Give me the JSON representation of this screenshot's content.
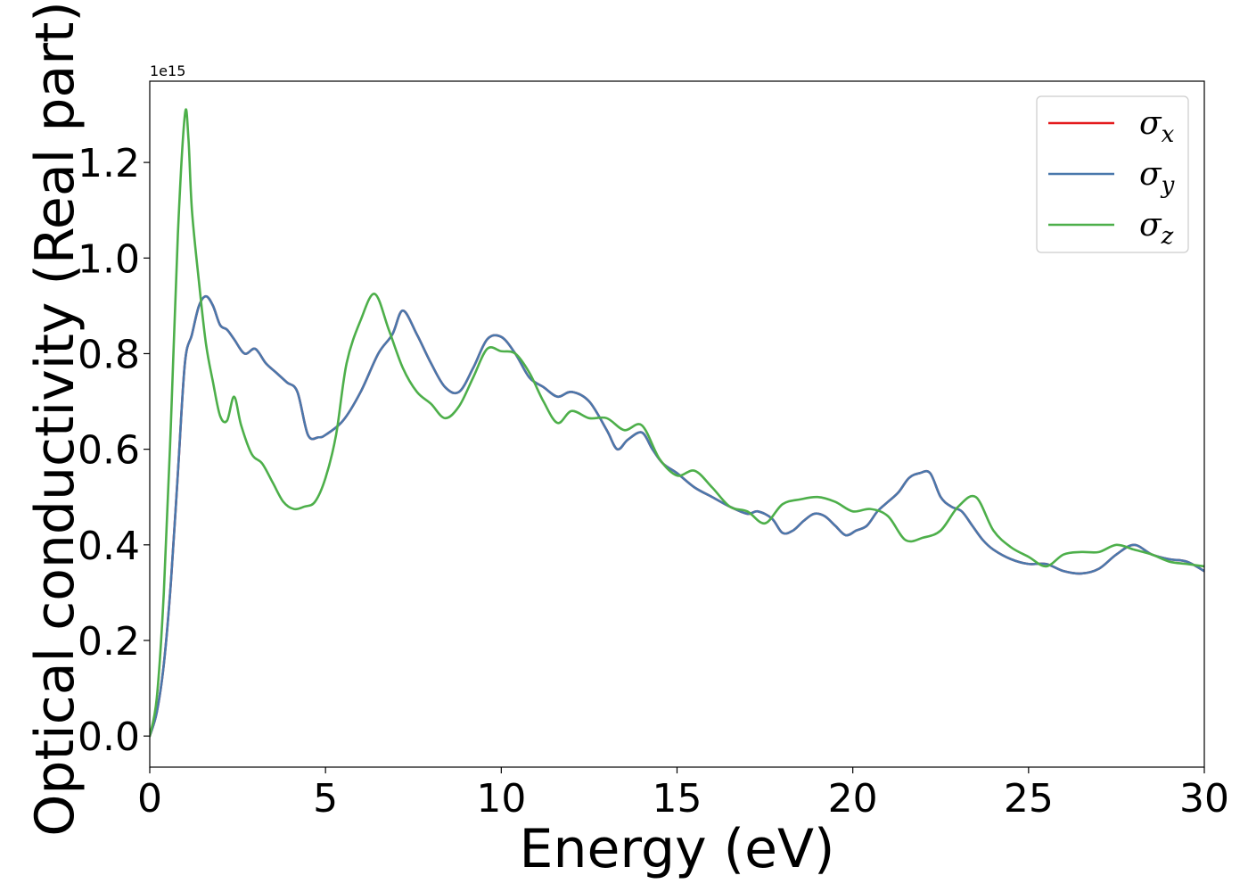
{
  "chart_data": {
    "type": "line",
    "title": "",
    "xlabel": "Energy (eV)",
    "ylabel": "Optical conductivity (Real part)",
    "y_offset_label": "1e15",
    "xlim": [
      0,
      30
    ],
    "ylim": [
      -0.065,
      1.37
    ],
    "xticks": [
      0,
      5,
      10,
      15,
      20,
      25,
      30
    ],
    "xtick_labels": [
      "0",
      "5",
      "10",
      "15",
      "20",
      "25",
      "30"
    ],
    "yticks": [
      0.0,
      0.2,
      0.4,
      0.6,
      0.8,
      1.0,
      1.2
    ],
    "ytick_labels": [
      "0.0",
      "0.2",
      "0.4",
      "0.6",
      "0.8",
      "1.0",
      "1.2"
    ],
    "grid": false,
    "legend_position": "top-right",
    "series": [
      {
        "name": "σx",
        "legend_base": "σ",
        "legend_sub": "x",
        "color": "#e41a1c",
        "x": [
          0,
          0.2,
          0.4,
          0.6,
          0.8,
          1.0,
          1.2,
          1.4,
          1.6,
          1.8,
          2.0,
          2.2,
          2.4,
          2.7,
          3.0,
          3.3,
          3.6,
          3.9,
          4.2,
          4.5,
          4.8,
          5.0,
          5.5,
          6.0,
          6.5,
          6.9,
          7.2,
          7.6,
          8.0,
          8.4,
          8.8,
          9.2,
          9.6,
          10.0,
          10.4,
          10.8,
          11.2,
          11.6,
          12.0,
          12.5,
          13.0,
          13.3,
          13.6,
          14.0,
          14.3,
          14.6,
          15.0,
          15.5,
          16.0,
          16.5,
          17.0,
          17.3,
          17.7,
          18.0,
          18.3,
          18.6,
          18.9,
          19.2,
          19.5,
          19.8,
          20.1,
          20.4,
          20.7,
          21.0,
          21.3,
          21.6,
          21.9,
          22.2,
          22.5,
          22.8,
          23.1,
          23.4,
          23.7,
          24.0,
          24.5,
          25.0,
          25.5,
          26.0,
          26.5,
          27.0,
          27.5,
          28.0,
          28.5,
          29.0,
          29.5,
          30.0
        ],
        "y": [
          0.0,
          0.05,
          0.15,
          0.32,
          0.55,
          0.78,
          0.84,
          0.9,
          0.92,
          0.9,
          0.86,
          0.85,
          0.83,
          0.8,
          0.81,
          0.78,
          0.76,
          0.74,
          0.72,
          0.63,
          0.625,
          0.63,
          0.66,
          0.72,
          0.8,
          0.84,
          0.89,
          0.84,
          0.78,
          0.73,
          0.72,
          0.77,
          0.83,
          0.835,
          0.8,
          0.75,
          0.73,
          0.71,
          0.72,
          0.7,
          0.64,
          0.6,
          0.62,
          0.635,
          0.6,
          0.57,
          0.55,
          0.52,
          0.5,
          0.48,
          0.465,
          0.47,
          0.455,
          0.425,
          0.43,
          0.45,
          0.465,
          0.46,
          0.44,
          0.42,
          0.43,
          0.44,
          0.47,
          0.49,
          0.51,
          0.54,
          0.55,
          0.55,
          0.5,
          0.48,
          0.47,
          0.44,
          0.41,
          0.39,
          0.37,
          0.36,
          0.36,
          0.345,
          0.34,
          0.35,
          0.38,
          0.4,
          0.38,
          0.37,
          0.365,
          0.345
        ]
      },
      {
        "name": "σy",
        "legend_base": "σ",
        "legend_sub": "y",
        "color": "#4a78ac",
        "x": [
          0,
          0.2,
          0.4,
          0.6,
          0.8,
          1.0,
          1.2,
          1.4,
          1.6,
          1.8,
          2.0,
          2.2,
          2.4,
          2.7,
          3.0,
          3.3,
          3.6,
          3.9,
          4.2,
          4.5,
          4.8,
          5.0,
          5.5,
          6.0,
          6.5,
          6.9,
          7.2,
          7.6,
          8.0,
          8.4,
          8.8,
          9.2,
          9.6,
          10.0,
          10.4,
          10.8,
          11.2,
          11.6,
          12.0,
          12.5,
          13.0,
          13.3,
          13.6,
          14.0,
          14.3,
          14.6,
          15.0,
          15.5,
          16.0,
          16.5,
          17.0,
          17.3,
          17.7,
          18.0,
          18.3,
          18.6,
          18.9,
          19.2,
          19.5,
          19.8,
          20.1,
          20.4,
          20.7,
          21.0,
          21.3,
          21.6,
          21.9,
          22.2,
          22.5,
          22.8,
          23.1,
          23.4,
          23.7,
          24.0,
          24.5,
          25.0,
          25.5,
          26.0,
          26.5,
          27.0,
          27.5,
          28.0,
          28.5,
          29.0,
          29.5,
          30.0
        ],
        "y": [
          0.0,
          0.05,
          0.15,
          0.32,
          0.55,
          0.78,
          0.84,
          0.9,
          0.92,
          0.9,
          0.86,
          0.85,
          0.83,
          0.8,
          0.81,
          0.78,
          0.76,
          0.74,
          0.72,
          0.63,
          0.625,
          0.63,
          0.66,
          0.72,
          0.8,
          0.84,
          0.89,
          0.84,
          0.78,
          0.73,
          0.72,
          0.77,
          0.83,
          0.835,
          0.8,
          0.75,
          0.73,
          0.71,
          0.72,
          0.7,
          0.64,
          0.6,
          0.62,
          0.635,
          0.6,
          0.57,
          0.55,
          0.52,
          0.5,
          0.48,
          0.465,
          0.47,
          0.455,
          0.425,
          0.43,
          0.45,
          0.465,
          0.46,
          0.44,
          0.42,
          0.43,
          0.44,
          0.47,
          0.49,
          0.51,
          0.54,
          0.55,
          0.55,
          0.5,
          0.48,
          0.47,
          0.44,
          0.41,
          0.39,
          0.37,
          0.36,
          0.36,
          0.345,
          0.34,
          0.35,
          0.38,
          0.4,
          0.38,
          0.37,
          0.365,
          0.345
        ]
      },
      {
        "name": "σz",
        "legend_base": "σ",
        "legend_sub": "z",
        "color": "#4daf4a",
        "x": [
          0,
          0.2,
          0.4,
          0.6,
          0.8,
          1.0,
          1.1,
          1.2,
          1.4,
          1.6,
          1.8,
          2.0,
          2.2,
          2.4,
          2.6,
          2.9,
          3.2,
          3.5,
          3.8,
          4.1,
          4.4,
          4.7,
          5.0,
          5.3,
          5.6,
          6.0,
          6.4,
          6.8,
          7.2,
          7.6,
          8.0,
          8.4,
          8.8,
          9.2,
          9.6,
          10.0,
          10.4,
          10.8,
          11.2,
          11.6,
          12.0,
          12.5,
          13.0,
          13.5,
          14.0,
          14.5,
          15.0,
          15.5,
          16.0,
          16.5,
          17.0,
          17.5,
          18.0,
          18.5,
          19.0,
          19.5,
          20.0,
          20.5,
          21.0,
          21.5,
          22.0,
          22.5,
          23.0,
          23.5,
          24.0,
          24.5,
          25.0,
          25.5,
          26.0,
          26.5,
          27.0,
          27.5,
          28.0,
          28.5,
          29.0,
          29.5,
          30.0
        ],
        "y": [
          0.0,
          0.08,
          0.3,
          0.65,
          1.05,
          1.3,
          1.25,
          1.1,
          0.95,
          0.82,
          0.74,
          0.67,
          0.66,
          0.71,
          0.65,
          0.59,
          0.57,
          0.53,
          0.49,
          0.475,
          0.48,
          0.49,
          0.54,
          0.63,
          0.78,
          0.87,
          0.925,
          0.85,
          0.77,
          0.72,
          0.695,
          0.665,
          0.69,
          0.75,
          0.81,
          0.805,
          0.8,
          0.76,
          0.7,
          0.655,
          0.68,
          0.665,
          0.665,
          0.64,
          0.65,
          0.58,
          0.545,
          0.555,
          0.52,
          0.48,
          0.47,
          0.445,
          0.485,
          0.495,
          0.5,
          0.49,
          0.47,
          0.475,
          0.46,
          0.41,
          0.415,
          0.43,
          0.48,
          0.5,
          0.43,
          0.395,
          0.375,
          0.355,
          0.38,
          0.385,
          0.385,
          0.4,
          0.39,
          0.38,
          0.365,
          0.36,
          0.355
        ]
      }
    ]
  }
}
